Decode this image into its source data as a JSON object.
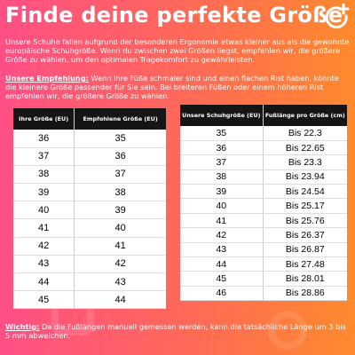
{
  "title": "Finde deine perfekte Größe",
  "intro": "Unsere Schuhe fallen aufgrund der besonderen Ergonomie etwas kleiner aus als die gewohnte europäische Schuhgröße. Wenn du zwischen zwei Größen liegst, empfehlen wir, die größere Größe zu wählen, um den optimalen Tragekomfort zu gewährleisten.",
  "recommendation": {
    "label": "Unsere Empfehlung:",
    "text": " Wenn Ihre Füße schmaler sind und einen flachen Rist haben, könnte die kleinere Größe passender für Sie sein. Bei breiteren Füßen oder einem höheren Rist empfehlen wir, die größere Größe zu wählen."
  },
  "size_table": {
    "headers": [
      "Ihre Größe (EU)",
      "Empfohlene Größe (EU)"
    ],
    "rows": [
      [
        "36",
        "35"
      ],
      [
        "37",
        "36"
      ],
      [
        "38",
        "37"
      ],
      [
        "39",
        "38"
      ],
      [
        "40",
        "39"
      ],
      [
        "41",
        "40"
      ],
      [
        "42",
        "41"
      ],
      [
        "43",
        "42"
      ],
      [
        "44",
        "43"
      ],
      [
        "45",
        "44"
      ]
    ]
  },
  "length_table": {
    "headers": [
      "Unsere Schuhgröße (EU)",
      "Fußlänge pro Größe (cm)"
    ],
    "rows": [
      [
        "35",
        "Bis 22.3"
      ],
      [
        "36",
        "Bis 22.65"
      ],
      [
        "37",
        "Bis 23.3"
      ],
      [
        "38",
        "Bis 23.94"
      ],
      [
        "39",
        "Bis 24.54"
      ],
      [
        "40",
        "Bis 25.17"
      ],
      [
        "41",
        "Bis 25.76"
      ],
      [
        "42",
        "Bis 26.37"
      ],
      [
        "43",
        "Bis 26.87"
      ],
      [
        "44",
        "Bis 27.48"
      ],
      [
        "45",
        "Bis 28.01"
      ],
      [
        "46",
        "Bis 28.86"
      ]
    ]
  },
  "note": {
    "label": "Wichtig:",
    "text": " Da die Fußlängen manuell gemessen werden, kann die tatsächliche Länge um 3 bis 5 mm abweichen."
  },
  "icons": [
    "brand-logo-icon"
  ],
  "colors": {
    "gradient_start": "#ff4f86",
    "gradient_end": "#ff8a2c",
    "header_bg": "#151515"
  }
}
